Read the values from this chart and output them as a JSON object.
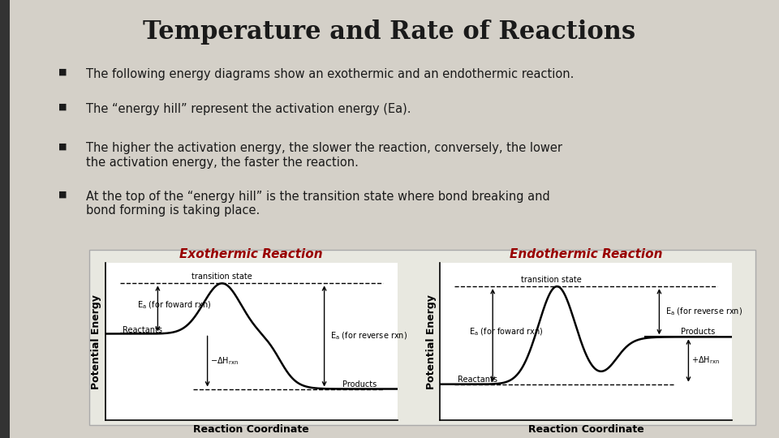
{
  "title": "Temperature and Rate of Reactions",
  "bg_color": "#d4d0c8",
  "title_color": "#1a1a1a",
  "bullet_points": [
    "The following energy diagrams show an exothermic and an endothermic reaction.",
    "The “energy hill” represent the activation energy (Ea).",
    "The higher the activation energy, the slower the reaction, conversely, the lower\nthe activation energy, the faster the reaction.",
    "At the top of the “energy hill” is the transition state where bond breaking and\nbond forming is taking place."
  ],
  "left_panel_title": "Exothermic Reaction",
  "right_panel_title": "Endothermic Reaction",
  "xlabel": "Reaction Coordinate",
  "ylabel": "Potential Energy",
  "black_bar_color": "#333333"
}
